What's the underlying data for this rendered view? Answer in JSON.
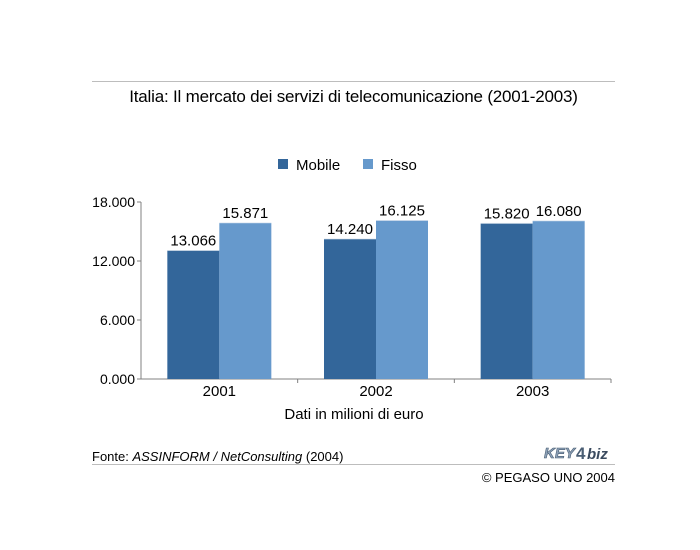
{
  "chart_data": {
    "type": "bar",
    "title": "Italia: Il mercato dei servizi di telecomunicazione (2001-2003)",
    "categories": [
      "2001",
      "2002",
      "2003"
    ],
    "series": [
      {
        "name": "Mobile",
        "color": "#33669a",
        "values": [
          13066,
          14240,
          15820
        ],
        "labels": [
          "13.066",
          "14.240",
          "15.820"
        ]
      },
      {
        "name": "Fisso",
        "color": "#6699cc",
        "values": [
          15871,
          16125,
          16080
        ],
        "labels": [
          "15.871",
          "16.125",
          "16.080"
        ]
      }
    ],
    "y_ticks": [
      {
        "value": 0,
        "label": "0.000"
      },
      {
        "value": 6000,
        "label": "6.000"
      },
      {
        "value": 12000,
        "label": "12.000"
      },
      {
        "value": 18000,
        "label": "18.000"
      }
    ],
    "ylim": [
      0,
      18000
    ],
    "xlabel": "Dati in milioni di euro",
    "ylabel": "",
    "legend_position": "top-center",
    "grid": false
  },
  "source": {
    "prefix": "Fonte: ",
    "name": "ASSINFORM / NetConsulting",
    "suffix": " (2004)"
  },
  "copyright": "© PEGASO UNO 2004",
  "logo_text": "KEY4biz"
}
